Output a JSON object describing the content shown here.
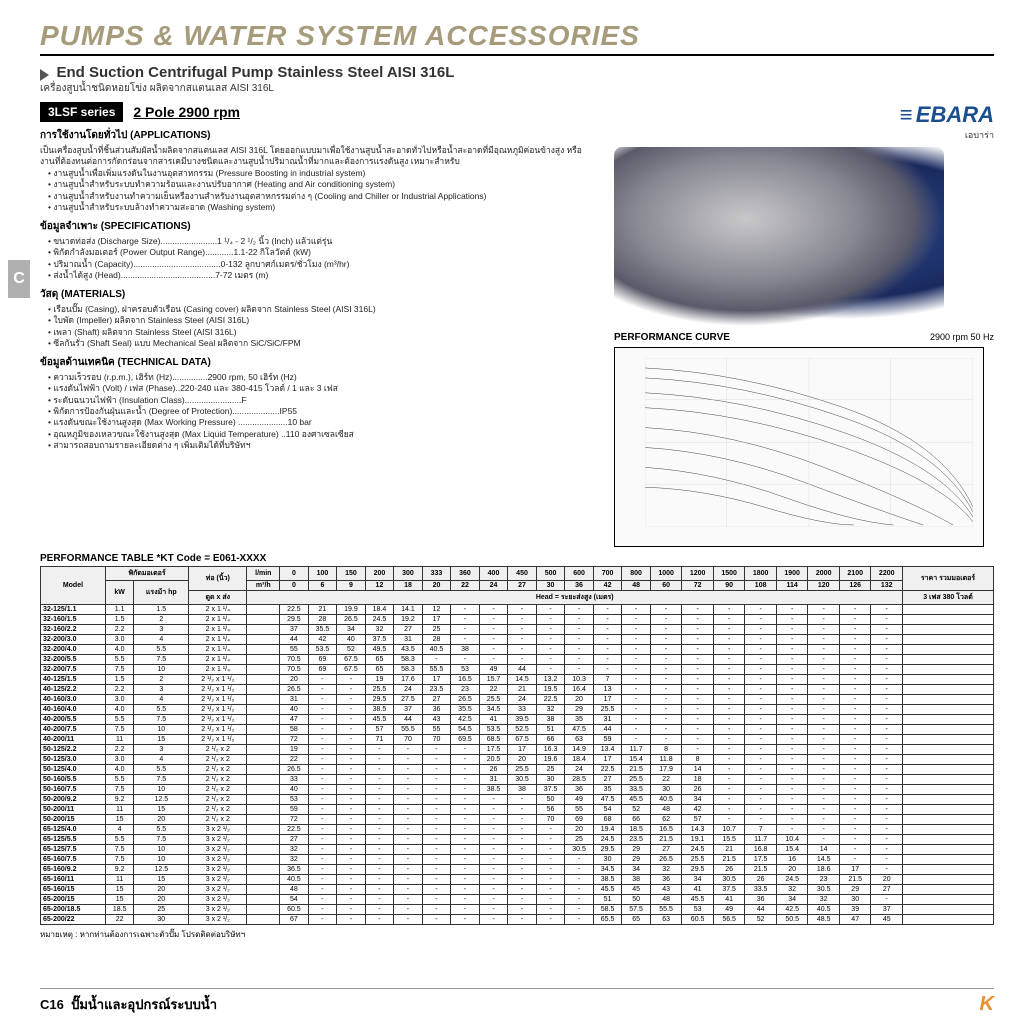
{
  "header": "PUMPS & WATER SYSTEM ACCESSORIES",
  "title": "End Suction Centrifugal Pump Stainless Steel AISI 316L",
  "subtitle": "เครื่องสูบน้ำชนิดหอยโข่ง ผลิตจากสแตนเลส AISI 316L",
  "series_badge": "3LSF series",
  "series_spec": "2 Pole 2900 rpm",
  "brand": "EBARA",
  "brand_sub": "เอบาร่า",
  "tab": "C",
  "perf_curve_label": "PERFORMANCE CURVE",
  "perf_curve_spec": "2900 rpm 50 Hz",
  "sections": {
    "app_h": "การใช้งานโดยทั่วไป (APPLICATIONS)",
    "app_desc": "เป็นเครื่องสูบน้ำที่ชิ้นส่วนสัมผัสน้ำผลิตจากสแตนเลส AISI 316L โดยออกแบบมาเพื่อใช้งานสูบน้ำสะอาดทั่วไปหรือน้ำสะอาดที่มีอุณหภูมิค่อนข้างสูง หรืองานที่ต้องทนต่อการกัดกร่อนจากสารเคมีบางชนิดและงานสูบน้ำปริมาณน้ำที่มากและต้องการแรงดันสูง เหมาะสำหรับ",
    "app_bullets": [
      "งานสูบน้ำเพื่อเพิ่มแรงดันในงานอุตสาหกรรม (Pressure Boosting in industrial system)",
      "งานสูบน้ำสำหรับระบบทำความร้อนและงานปรับอากาศ (Heating and Air conditioning system)",
      "งานสูบน้ำสำหรับงานทำความเย็นหรืองานสำหรับงานอุตสาหกรรมต่าง ๆ (Cooling and Chiller or Industrial Applications)",
      "งานสูบน้ำสำหรับระบบล้างทำความสะอาด (Washing system)"
    ],
    "spec_h": "ข้อมูลจำเพาะ (SPECIFICATIONS)",
    "spec_bullets": [
      "ขนาดท่อส่ง (Discharge Size)........................1 ¹/₄ - 2 ¹/₂ นิ้ว (Inch) แล้วแต่รุ่น",
      "พิกัดกำลังมอเตอร์ (Power Output Range)............1.1-22 กิโลวัตต์ (kW)",
      "ปริมาณน้ำ (Capacity).....................................0-132 ลูกบาศก์เมตร/ชั่วโมง (m³/hr)",
      "ส่งน้ำได้สูง (Head)........................................7-72 เมตร (m)"
    ],
    "mat_h": "วัสดุ (MATERIALS)",
    "mat_bullets": [
      "เรือนปั๊ม (Casing), ฝาครอบตัวเรือน (Casing cover) ผลิตจาก Stainless Steel (AISI 316L)",
      "ใบพัด (Impeller) ผลิตจาก Stainless Steel (AISI 316L)",
      "เพลา (Shaft) ผลิตจาก Stainless Steel (AISI 316L)",
      "ซีลกันรั่ว (Shaft Seal) แบบ Mechanical Seal  ผลิตจาก SiC/SiC/FPM"
    ],
    "tech_h": "ข้อมูลด้านเทคนิค (TECHNICAL DATA)",
    "tech_bullets": [
      "ความเร็วรอบ (r.p.m.), เฮิร์ท (Hz)...............2900 rpm, 50 เฮิร์ท (Hz)",
      "แรงดันไฟฟ้า (Volt) / เฟส (Phase)..220-240 และ 380-415 โวลต์ / 1 และ 3 เฟส",
      "ระดับฉนวนไฟฟ้า (Insulation Class)........................F",
      "พิกัดการป้องกันฝุ่นและน้ำ (Degree of Protection)....................IP55",
      "แรงดันขณะใช้งานสูงสุด (Max Working Pressure) .....................10 bar",
      "อุณหภูมิของเหลวขณะใช้งานสูงสุด (Max Liquid Temperature) ..110 องศาเซลเซียส",
      "สามารถสอบถามรายละเอียดต่าง ๆ เพิ่มเติมได้ที่บริษัทฯ"
    ]
  },
  "table_title": "PERFORMANCE TABLE  *KT Code = E061-XXXX",
  "table_headers": {
    "model": "Model",
    "motor": "พิกัดมอเตอร์",
    "kw": "kW",
    "hp": "แรงม้า hp",
    "pipe": "ท่อ (นิ้ว)",
    "pipe_sub": "ดูด x ส่ง",
    "lmin": "l/min",
    "m3h": "m³/h",
    "capacity": "Capacity (Q) = ปริมาณน้ำ",
    "head": "Head = ระยะส่งสูง (เมตร)",
    "price": "ราคา รวมมอเตอร์",
    "phase": "3 เฟส 380 โวลต์"
  },
  "flow_lmin": [
    "0",
    "100",
    "150",
    "200",
    "300",
    "333",
    "360",
    "400",
    "450",
    "500",
    "600",
    "700",
    "800",
    "1000",
    "1200",
    "1500",
    "1800",
    "1900",
    "2000",
    "2100",
    "2200"
  ],
  "flow_m3h": [
    "0",
    "6",
    "9",
    "12",
    "18",
    "20",
    "22",
    "24",
    "27",
    "30",
    "36",
    "42",
    "48",
    "60",
    "72",
    "90",
    "108",
    "114",
    "120",
    "126",
    "132"
  ],
  "rows": [
    {
      "m": "32-125/1.1",
      "kw": "1.1",
      "hp": "1.5",
      "p": "2 x 1 ¹/₄",
      "h": [
        "22.5",
        "21",
        "19.9",
        "18.4",
        "14.1",
        "12",
        "-",
        "-",
        "-",
        "-",
        "-",
        "-",
        "-",
        "-",
        "-",
        "-",
        "-",
        "-",
        "-",
        "-",
        "-"
      ]
    },
    {
      "m": "32-160/1.5",
      "kw": "1.5",
      "hp": "2",
      "p": "2 x 1 ¹/₄",
      "h": [
        "29.5",
        "28",
        "26.5",
        "24.5",
        "19.2",
        "17",
        "-",
        "-",
        "-",
        "-",
        "-",
        "-",
        "-",
        "-",
        "-",
        "-",
        "-",
        "-",
        "-",
        "-",
        "-"
      ]
    },
    {
      "m": "32-160/2.2",
      "kw": "2.2",
      "hp": "3",
      "p": "2 x 1 ¹/₄",
      "h": [
        "37",
        "35.5",
        "34",
        "32",
        "27",
        "25",
        "-",
        "-",
        "-",
        "-",
        "-",
        "-",
        "-",
        "-",
        "-",
        "-",
        "-",
        "-",
        "-",
        "-",
        "-"
      ]
    },
    {
      "m": "32-200/3.0",
      "kw": "3.0",
      "hp": "4",
      "p": "2 x 1 ¹/₄",
      "h": [
        "44",
        "42",
        "40",
        "37.5",
        "31",
        "28",
        "-",
        "-",
        "-",
        "-",
        "-",
        "-",
        "-",
        "-",
        "-",
        "-",
        "-",
        "-",
        "-",
        "-",
        "-"
      ]
    },
    {
      "m": "32-200/4.0",
      "kw": "4.0",
      "hp": "5.5",
      "p": "2 x 1 ¹/₄",
      "h": [
        "55",
        "53.5",
        "52",
        "49.5",
        "43.5",
        "40.5",
        "38",
        "-",
        "-",
        "-",
        "-",
        "-",
        "-",
        "-",
        "-",
        "-",
        "-",
        "-",
        "-",
        "-",
        "-"
      ]
    },
    {
      "m": "32-200/5.5",
      "kw": "5.5",
      "hp": "7.5",
      "p": "2 x 1 ¹/₄",
      "h": [
        "70.5",
        "69",
        "67.5",
        "65",
        "58.3",
        "-",
        "-",
        "-",
        "-",
        "-",
        "-",
        "-",
        "-",
        "-",
        "-",
        "-",
        "-",
        "-",
        "-",
        "-",
        "-"
      ]
    },
    {
      "m": "32-200/7.5",
      "kw": "7.5",
      "hp": "10",
      "p": "2 x 1 ¹/₄",
      "h": [
        "70.5",
        "69",
        "67.5",
        "65",
        "58.3",
        "55.5",
        "53",
        "49",
        "44",
        "-",
        "-",
        "-",
        "-",
        "-",
        "-",
        "-",
        "-",
        "-",
        "-",
        "-",
        "-"
      ]
    },
    {
      "m": "40-125/1.5",
      "kw": "1.5",
      "hp": "2",
      "p": "2 ¹/₂ x 1 ¹/₂",
      "h": [
        "20",
        "-",
        "-",
        "19",
        "17.6",
        "17",
        "16.5",
        "15.7",
        "14.5",
        "13.2",
        "10.3",
        "7",
        "-",
        "-",
        "-",
        "-",
        "-",
        "-",
        "-",
        "-",
        "-"
      ]
    },
    {
      "m": "40-125/2.2",
      "kw": "2.2",
      "hp": "3",
      "p": "2 ¹/₂ x 1 ¹/₂",
      "h": [
        "26.5",
        "-",
        "-",
        "25.5",
        "24",
        "23.5",
        "23",
        "22",
        "21",
        "19.5",
        "16.4",
        "13",
        "-",
        "-",
        "-",
        "-",
        "-",
        "-",
        "-",
        "-",
        "-"
      ]
    },
    {
      "m": "40-160/3.0",
      "kw": "3.0",
      "hp": "4",
      "p": "2 ¹/₂ x 1 ¹/₂",
      "h": [
        "31",
        "-",
        "-",
        "29.5",
        "27.5",
        "27",
        "26.5",
        "25.5",
        "24",
        "22.5",
        "20",
        "17",
        "-",
        "-",
        "-",
        "-",
        "-",
        "-",
        "-",
        "-",
        "-"
      ]
    },
    {
      "m": "40-160/4.0",
      "kw": "4.0",
      "hp": "5.5",
      "p": "2 ¹/₂ x 1 ¹/₂",
      "h": [
        "40",
        "-",
        "-",
        "38.5",
        "37",
        "36",
        "35.5",
        "34.5",
        "33",
        "32",
        "29",
        "25.5",
        "-",
        "-",
        "-",
        "-",
        "-",
        "-",
        "-",
        "-",
        "-"
      ]
    },
    {
      "m": "40-200/5.5",
      "kw": "5.5",
      "hp": "7.5",
      "p": "2 ¹/₂ x 1 ¹/₂",
      "h": [
        "47",
        "-",
        "-",
        "45.5",
        "44",
        "43",
        "42.5",
        "41",
        "39.5",
        "38",
        "35",
        "31",
        "-",
        "-",
        "-",
        "-",
        "-",
        "-",
        "-",
        "-",
        "-"
      ]
    },
    {
      "m": "40-200/7.5",
      "kw": "7.5",
      "hp": "10",
      "p": "2 ¹/₂ x 1 ¹/₂",
      "h": [
        "58",
        "-",
        "-",
        "57",
        "55.5",
        "55",
        "54.5",
        "53.5",
        "52.5",
        "51",
        "47.5",
        "44",
        "-",
        "-",
        "-",
        "-",
        "-",
        "-",
        "-",
        "-",
        "-"
      ]
    },
    {
      "m": "40-200/11",
      "kw": "11",
      "hp": "15",
      "p": "2 ¹/₂ x 1 ¹/₂",
      "h": [
        "72",
        "-",
        "-",
        "71",
        "70",
        "70",
        "69.5",
        "68.5",
        "67.5",
        "66",
        "63",
        "59",
        "-",
        "-",
        "-",
        "-",
        "-",
        "-",
        "-",
        "-",
        "-"
      ]
    },
    {
      "m": "50-125/2.2",
      "kw": "2.2",
      "hp": "3",
      "p": "2 ¹/₂ x 2",
      "h": [
        "19",
        "-",
        "-",
        "-",
        "-",
        "-",
        "-",
        "17.5",
        "17",
        "16.3",
        "14.9",
        "13.4",
        "11.7",
        "8",
        "-",
        "-",
        "-",
        "-",
        "-",
        "-",
        "-"
      ]
    },
    {
      "m": "50-125/3.0",
      "kw": "3.0",
      "hp": "4",
      "p": "2 ¹/₂ x 2",
      "h": [
        "22",
        "-",
        "-",
        "-",
        "-",
        "-",
        "-",
        "20.5",
        "20",
        "19.6",
        "18.4",
        "17",
        "15.4",
        "11.8",
        "8",
        "-",
        "-",
        "-",
        "-",
        "-",
        "-"
      ]
    },
    {
      "m": "50-125/4.0",
      "kw": "4.0",
      "hp": "5.5",
      "p": "2 ¹/₂ x 2",
      "h": [
        "26.5",
        "-",
        "-",
        "-",
        "-",
        "-",
        "-",
        "26",
        "25.5",
        "25",
        "24",
        "22.5",
        "21.5",
        "17.9",
        "14",
        "-",
        "-",
        "-",
        "-",
        "-",
        "-"
      ]
    },
    {
      "m": "50-160/5.5",
      "kw": "5.5",
      "hp": "7.5",
      "p": "2 ¹/₂ x 2",
      "h": [
        "33",
        "-",
        "-",
        "-",
        "-",
        "-",
        "-",
        "31",
        "30.5",
        "30",
        "28.5",
        "27",
        "25.5",
        "22",
        "18",
        "-",
        "-",
        "-",
        "-",
        "-",
        "-"
      ]
    },
    {
      "m": "50-160/7.5",
      "kw": "7.5",
      "hp": "10",
      "p": "2 ¹/₂ x 2",
      "h": [
        "40",
        "-",
        "-",
        "-",
        "-",
        "-",
        "-",
        "38.5",
        "38",
        "37.5",
        "36",
        "35",
        "33.5",
        "30",
        "26",
        "-",
        "-",
        "-",
        "-",
        "-",
        "-"
      ]
    },
    {
      "m": "50-200/9.2",
      "kw": "9.2",
      "hp": "12.5",
      "p": "2 ¹/₂ x 2",
      "h": [
        "53",
        "-",
        "-",
        "-",
        "-",
        "-",
        "-",
        "-",
        "-",
        "50",
        "49",
        "47.5",
        "45.5",
        "40.5",
        "34",
        "-",
        "-",
        "-",
        "-",
        "-",
        "-"
      ]
    },
    {
      "m": "50-200/11",
      "kw": "11",
      "hp": "15",
      "p": "2 ¹/₂ x 2",
      "h": [
        "59",
        "-",
        "-",
        "-",
        "-",
        "-",
        "-",
        "-",
        "-",
        "56",
        "55",
        "54",
        "52",
        "48",
        "42",
        "-",
        "-",
        "-",
        "-",
        "-",
        "-"
      ]
    },
    {
      "m": "50-200/15",
      "kw": "15",
      "hp": "20",
      "p": "2 ¹/₂ x 2",
      "h": [
        "72",
        "-",
        "-",
        "-",
        "-",
        "-",
        "-",
        "-",
        "-",
        "70",
        "69",
        "68",
        "66",
        "62",
        "57",
        "-",
        "-",
        "-",
        "-",
        "-",
        "-"
      ]
    },
    {
      "m": "65-125/4.0",
      "kw": "4",
      "hp": "5.5",
      "p": "3 x 2 ¹/₂",
      "h": [
        "22.5",
        "-",
        "-",
        "-",
        "-",
        "-",
        "-",
        "-",
        "-",
        "-",
        "20",
        "19.4",
        "18.5",
        "16.5",
        "14.3",
        "10.7",
        "7",
        "-",
        "-",
        "-",
        "-"
      ]
    },
    {
      "m": "65-125/5.5",
      "kw": "5.5",
      "hp": "7.5",
      "p": "3 x 2 ¹/₂",
      "h": [
        "27",
        "-",
        "-",
        "-",
        "-",
        "-",
        "-",
        "-",
        "-",
        "-",
        "25",
        "24.5",
        "23.5",
        "21.5",
        "19.1",
        "15.5",
        "11.7",
        "10.4",
        "-",
        "-",
        "-"
      ]
    },
    {
      "m": "65-125/7.5",
      "kw": "7.5",
      "hp": "10",
      "p": "3 x 2 ¹/₂",
      "h": [
        "32",
        "-",
        "-",
        "-",
        "-",
        "-",
        "-",
        "-",
        "-",
        "-",
        "30.5",
        "29.5",
        "29",
        "27",
        "24.5",
        "21",
        "16.8",
        "15.4",
        "14",
        "-",
        "-"
      ]
    },
    {
      "m": "65-160/7.5",
      "kw": "7.5",
      "hp": "10",
      "p": "3 x 2 ¹/₂",
      "h": [
        "32",
        "-",
        "-",
        "-",
        "-",
        "-",
        "-",
        "-",
        "-",
        "-",
        "-",
        "30",
        "29",
        "26.5",
        "25.5",
        "21.5",
        "17.5",
        "16",
        "14.5",
        "-",
        "-"
      ]
    },
    {
      "m": "65-160/9.2",
      "kw": "9.2",
      "hp": "12.5",
      "p": "3 x 2 ¹/₂",
      "h": [
        "36.5",
        "-",
        "-",
        "-",
        "-",
        "-",
        "-",
        "-",
        "-",
        "-",
        "-",
        "34.5",
        "34",
        "32",
        "29.5",
        "26",
        "21.5",
        "20",
        "18.6",
        "17",
        "-"
      ]
    },
    {
      "m": "65-160/11",
      "kw": "11",
      "hp": "15",
      "p": "3 x 2 ¹/₂",
      "h": [
        "40.5",
        "-",
        "-",
        "-",
        "-",
        "-",
        "-",
        "-",
        "-",
        "-",
        "-",
        "38.5",
        "38",
        "36",
        "34",
        "30.5",
        "26",
        "24.5",
        "23",
        "21.5",
        "20"
      ]
    },
    {
      "m": "65-160/15",
      "kw": "15",
      "hp": "20",
      "p": "3 x 2 ¹/₂",
      "h": [
        "48",
        "-",
        "-",
        "-",
        "-",
        "-",
        "-",
        "-",
        "-",
        "-",
        "-",
        "45.5",
        "45",
        "43",
        "41",
        "37.5",
        "33.5",
        "32",
        "30.5",
        "29",
        "27"
      ]
    },
    {
      "m": "65-200/15",
      "kw": "15",
      "hp": "20",
      "p": "3 x 2 ¹/₂",
      "h": [
        "54",
        "-",
        "-",
        "-",
        "-",
        "-",
        "-",
        "-",
        "-",
        "-",
        "-",
        "51",
        "50",
        "48",
        "45.5",
        "41",
        "36",
        "34",
        "32",
        "30",
        "-"
      ]
    },
    {
      "m": "65-200/18.5",
      "kw": "18.5",
      "hp": "25",
      "p": "3 x 2 ¹/₂",
      "h": [
        "60.5",
        "-",
        "-",
        "-",
        "-",
        "-",
        "-",
        "-",
        "-",
        "-",
        "-",
        "58.5",
        "57.5",
        "55.5",
        "53",
        "49",
        "44",
        "42.5",
        "40.5",
        "39",
        "37"
      ]
    },
    {
      "m": "65-200/22",
      "kw": "22",
      "hp": "30",
      "p": "3 x 2 ¹/₂",
      "h": [
        "67",
        "-",
        "-",
        "-",
        "-",
        "-",
        "-",
        "-",
        "-",
        "-",
        "-",
        "65.5",
        "65",
        "63",
        "60.5",
        "56.5",
        "52",
        "50.5",
        "48.5",
        "47",
        "45"
      ]
    }
  ],
  "note": "หมายเหตุ : หากท่านต้องการเฉพาะตัวปั๊ม โปรดติดต่อบริษัทฯ",
  "footer_page": "C16",
  "footer_text": "ปั๊มน้ำและอุปกรณ์ระบบน้ำ",
  "footer_brand": "K"
}
